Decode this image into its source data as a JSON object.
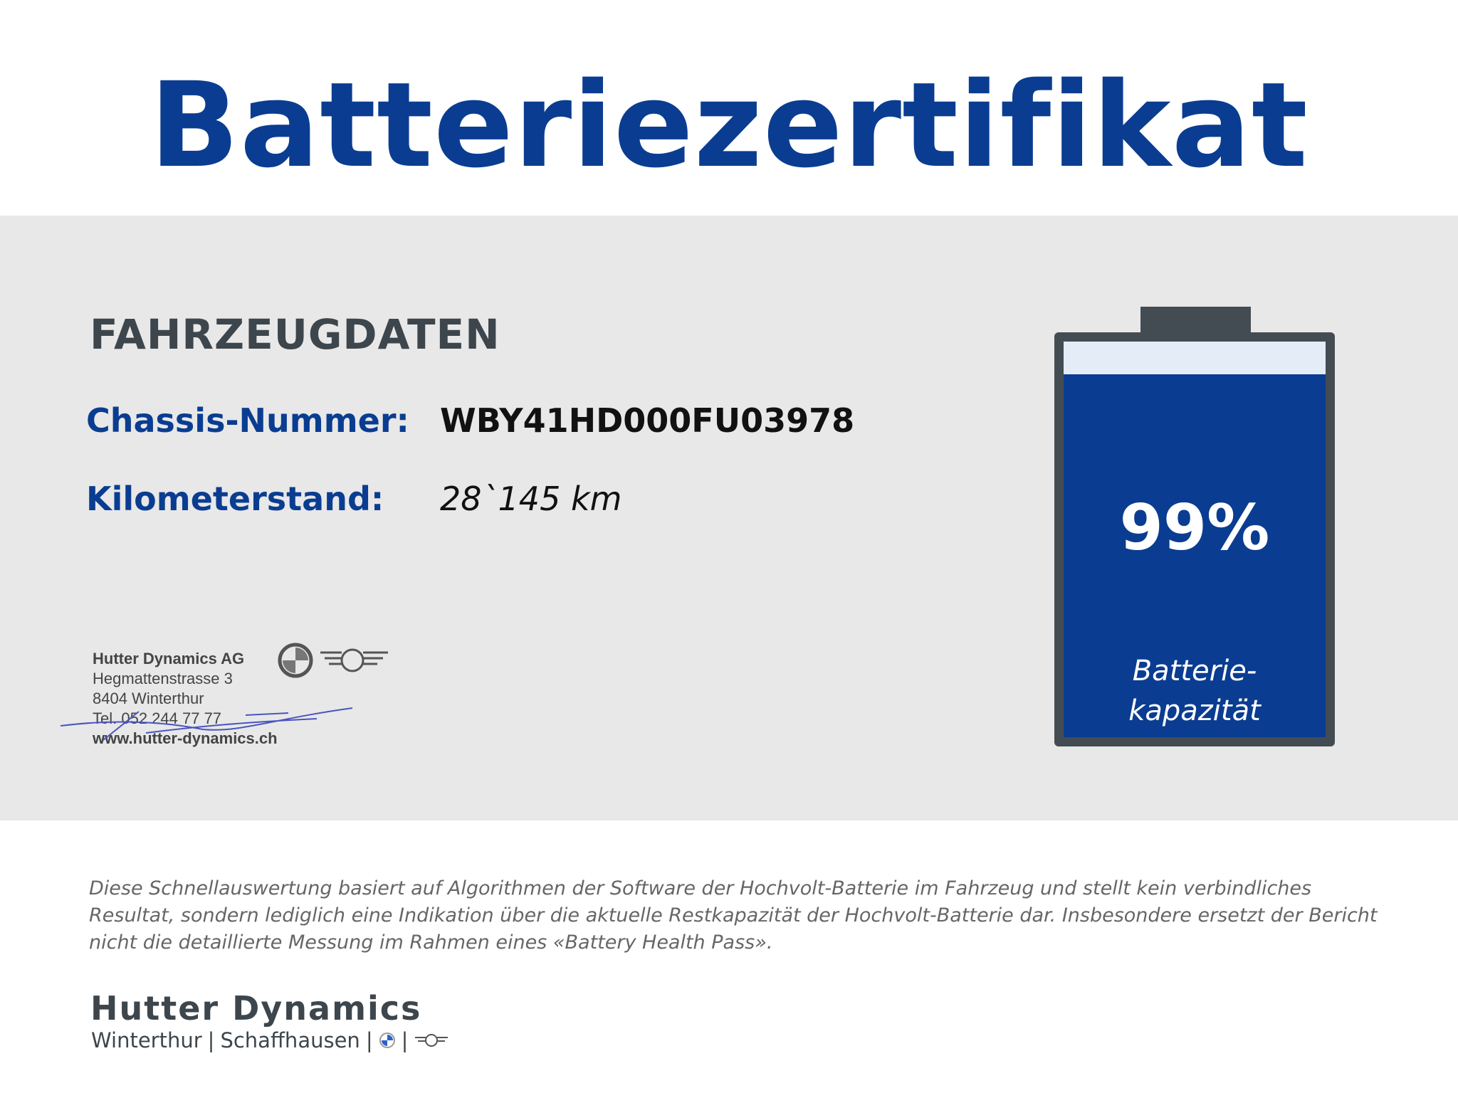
{
  "title": "Batteriezertifikat",
  "section_title": "FAHRZEUGDATEN",
  "vehicle": {
    "chassis_label": "Chassis-Nummer:",
    "chassis_value": "WBY41HD000FU03978",
    "mileage_label": "Kilometerstand:",
    "mileage_value": "28`145 km"
  },
  "stamp": {
    "company": "Hutter Dynamics AG",
    "street": "Hegmattenstrasse 3",
    "city": "8404 Winterthur",
    "phone": "Tel. 052 244 77 77",
    "web": "www.hutter-dynamics.ch"
  },
  "battery": {
    "percent_label": "99%",
    "capacity_percent": 99,
    "caption_line1": "Batterie-",
    "caption_line2": "kapazität"
  },
  "disclaimer": "Diese Schnellauswertung basiert auf Algorithmen der Software der Hochvolt-Batterie im Fahrzeug und stellt kein verbindliches Resultat, sondern lediglich eine Indikation über die aktuelle Restkapazität der Hochvolt-Batterie dar. Insbesondere ersetzt der Bericht nicht die detaillierte Messung im Rahmen eines «Battery Health Pass».",
  "footer": {
    "brand": "Hutter Dynamics",
    "loc1": "Winterthur",
    "loc2": "Schaffhausen",
    "sep": "|"
  },
  "colors": {
    "accent": "#0a3d91",
    "text_dark": "#3d464c",
    "band": "#e8e8e8"
  }
}
